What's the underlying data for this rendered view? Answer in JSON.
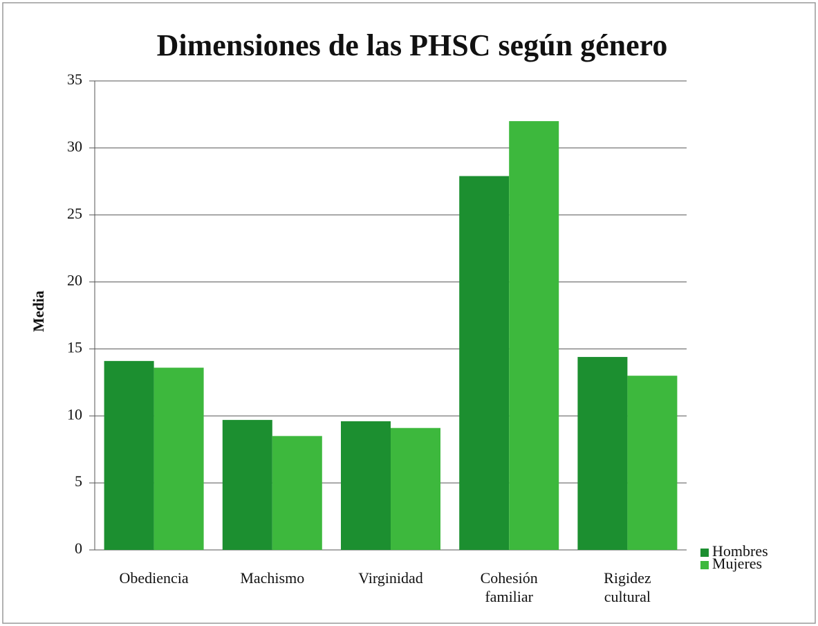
{
  "chart_data": {
    "type": "bar",
    "title": "Dimensiones de las PHSC según género",
    "ylabel": "Media",
    "categories": [
      "Obediencia",
      "Machismo",
      "Virginidad",
      "Cohesión familiar",
      "Rigidez cultural"
    ],
    "series": [
      {
        "name": "Hombres",
        "color": "#1c8f30",
        "values": [
          14.1,
          9.7,
          9.6,
          27.9,
          14.4
        ]
      },
      {
        "name": "Mujeres",
        "color": "#3db83d",
        "values": [
          13.6,
          8.5,
          9.1,
          32.0,
          13.0
        ]
      }
    ],
    "ylim": [
      0,
      35
    ],
    "yticks": [
      0,
      5,
      10,
      15,
      20,
      25,
      30,
      35
    ],
    "grid": true,
    "legend": "right"
  }
}
